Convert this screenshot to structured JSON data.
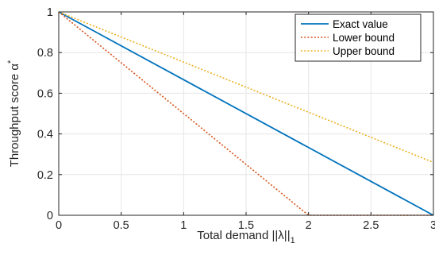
{
  "chart_data": {
    "type": "line",
    "xlabel": "Total demand ||λ||",
    "xlabel_sub": "1",
    "ylabel": "Throughput score α",
    "ylabel_sup": "*",
    "xlim": [
      0,
      3
    ],
    "ylim": [
      0,
      1
    ],
    "xticks": [
      "0",
      "0.5",
      "1",
      "1.5",
      "2",
      "2.5",
      "3"
    ],
    "yticks": [
      "0",
      "0.2",
      "0.4",
      "0.6",
      "0.8",
      "1"
    ],
    "grid": true,
    "legend_position": "top-right",
    "series": [
      {
        "name": "Exact value",
        "style": "solid",
        "color": "#0072BD",
        "x": [
          0,
          3
        ],
        "y": [
          1,
          0
        ]
      },
      {
        "name": "Lower bound",
        "style": "dotted",
        "color": "#D95319",
        "x": [
          0,
          2,
          3
        ],
        "y": [
          1,
          0,
          0
        ]
      },
      {
        "name": "Upper bound",
        "style": "dotted",
        "color": "#EDB120",
        "x": [
          0,
          3
        ],
        "y": [
          1,
          0.26
        ]
      }
    ]
  }
}
